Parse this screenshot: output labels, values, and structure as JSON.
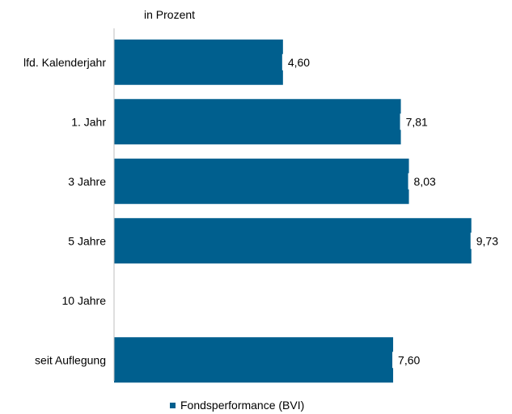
{
  "chart_data": {
    "type": "bar",
    "orientation": "horizontal",
    "unit_label": "in Prozent",
    "categories": [
      "lfd. Kalenderjahr",
      "1. Jahr",
      "3  Jahre",
      "5 Jahre",
      "10 Jahre",
      "seit Auflegung"
    ],
    "series": [
      {
        "name": "Fondsperformance (BVI)",
        "values": [
          4.6,
          7.81,
          8.03,
          9.73,
          null,
          7.6
        ],
        "value_labels": [
          "4,60",
          "7,81",
          "8,03",
          "9,73",
          "",
          "7,60"
        ],
        "color": "#005f8e"
      }
    ],
    "xlim": [
      0,
      10
    ],
    "grid": false,
    "legend_position": "bottom"
  }
}
